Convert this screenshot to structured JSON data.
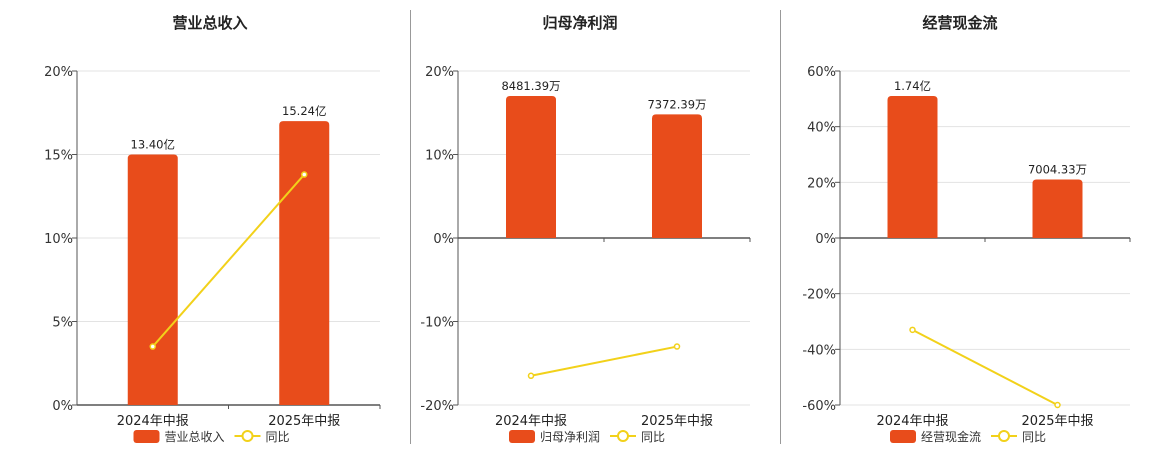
{
  "colors": {
    "bar": "#e84c1b",
    "line": "#f2d11a",
    "grid": "#e3e3e3",
    "axis": "#555555"
  },
  "chart_data": [
    {
      "type": "bar",
      "title": "营业总收入",
      "categories": [
        "2024年中报",
        "2025年中报"
      ],
      "series": [
        {
          "name": "营业总收入",
          "type": "bar",
          "values": [
            15,
            17
          ],
          "labels": [
            "13.40亿",
            "15.24亿"
          ]
        },
        {
          "name": "同比",
          "type": "line",
          "values": [
            3.5,
            13.8
          ]
        }
      ],
      "ylim": [
        0,
        20
      ],
      "yticks": [
        "0%",
        "5%",
        "10%",
        "15%",
        "20%"
      ],
      "ytick_values": [
        0,
        5,
        10,
        15,
        20
      ],
      "grid": true,
      "legend": "bottom"
    },
    {
      "type": "bar",
      "title": "归母净利润",
      "categories": [
        "2024年中报",
        "2025年中报"
      ],
      "series": [
        {
          "name": "归母净利润",
          "type": "bar",
          "values": [
            17,
            14.8
          ],
          "labels": [
            "8481.39万",
            "7372.39万"
          ]
        },
        {
          "name": "同比",
          "type": "line",
          "values": [
            -16.5,
            -13.0
          ]
        }
      ],
      "ylim": [
        -20,
        20
      ],
      "yticks": [
        "-20%",
        "-10%",
        "0%",
        "10%",
        "20%"
      ],
      "ytick_values": [
        -20,
        -10,
        0,
        10,
        20
      ],
      "grid": true,
      "legend": "bottom"
    },
    {
      "type": "bar",
      "title": "经营现金流",
      "categories": [
        "2024年中报",
        "2025年中报"
      ],
      "series": [
        {
          "name": "经营现金流",
          "type": "bar",
          "values": [
            51,
            21
          ],
          "labels": [
            "1.74亿",
            "7004.33万"
          ]
        },
        {
          "name": "同比",
          "type": "line",
          "values": [
            -33,
            -60
          ]
        }
      ],
      "ylim": [
        -60,
        60
      ],
      "yticks": [
        "-60%",
        "-40%",
        "-20%",
        "0%",
        "20%",
        "40%",
        "60%"
      ],
      "ytick_values": [
        -60,
        -40,
        -20,
        0,
        20,
        40,
        60
      ],
      "grid": true,
      "legend": "bottom"
    }
  ]
}
